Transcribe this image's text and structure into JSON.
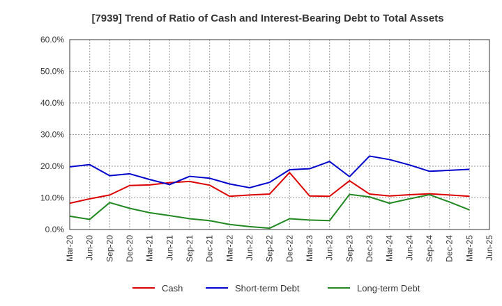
{
  "chart_data": {
    "type": "line",
    "title": "[7939]  Trend of Ratio of Cash and Interest-Bearing Debt to Total Assets",
    "xlabel": "",
    "ylabel": "",
    "ylim": [
      0,
      60
    ],
    "y_ticks": [
      "0.0%",
      "10.0%",
      "20.0%",
      "30.0%",
      "40.0%",
      "50.0%",
      "60.0%"
    ],
    "y_tick_values": [
      0,
      10,
      20,
      30,
      40,
      50,
      60
    ],
    "categories": [
      "Mar-20",
      "Jun-20",
      "Sep-20",
      "Dec-20",
      "Mar-21",
      "Jun-21",
      "Sep-21",
      "Dec-21",
      "Mar-22",
      "Jun-22",
      "Sep-22",
      "Dec-22",
      "Mar-23",
      "Jun-23",
      "Sep-23",
      "Dec-23",
      "Mar-24",
      "Jun-24",
      "Sep-24",
      "Dec-24",
      "Mar-25",
      "Jun-25"
    ],
    "grid": true,
    "legend_position": "bottom",
    "series": [
      {
        "name": "Cash",
        "color": "#dd0000",
        "values": [
          8.3,
          9.7,
          10.9,
          13.9,
          14.1,
          14.8,
          15.2,
          14.0,
          10.5,
          10.9,
          11.2,
          18.0,
          10.6,
          10.5,
          15.4,
          11.2,
          10.6,
          11.0,
          11.3,
          10.9,
          10.5,
          null
        ]
      },
      {
        "name": "Short-term Debt",
        "color": "#0000cc",
        "values": [
          19.8,
          20.5,
          17.0,
          17.6,
          15.8,
          14.2,
          16.8,
          16.2,
          14.4,
          13.2,
          14.9,
          18.9,
          19.2,
          21.5,
          16.7,
          23.2,
          22.1,
          20.4,
          18.4,
          18.7,
          19.0,
          null
        ]
      },
      {
        "name": "Long-term Debt",
        "color": "#228822",
        "values": [
          4.2,
          3.2,
          8.5,
          6.7,
          5.3,
          4.4,
          3.4,
          2.8,
          1.6,
          0.9,
          0.4,
          3.4,
          3.0,
          2.8,
          11.1,
          10.3,
          8.3,
          9.7,
          11.0,
          8.7,
          6.2,
          null
        ]
      }
    ]
  }
}
